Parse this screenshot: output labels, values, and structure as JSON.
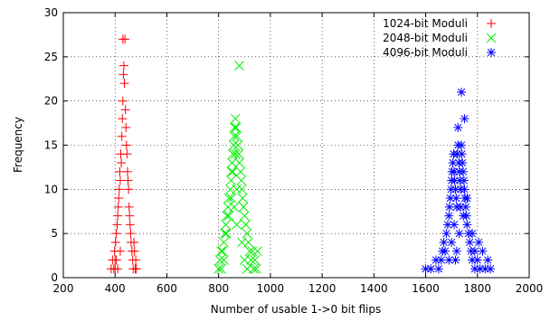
{
  "chart_data": {
    "type": "scatter",
    "xlabel": "Number of usable 1->0 bit flips",
    "ylabel": "Frequency",
    "xlim": [
      200,
      2000
    ],
    "ylim": [
      0,
      30
    ],
    "xticks": [
      200,
      400,
      600,
      800,
      1000,
      1200,
      1400,
      1600,
      1800,
      2000
    ],
    "yticks": [
      0,
      5,
      10,
      15,
      20,
      25,
      30
    ],
    "grid": true,
    "legend_position": "top-right",
    "series": [
      {
        "name": "1024-bit Moduli",
        "color": "#ff0000",
        "marker": "plus",
        "points": [
          [
            385,
            1
          ],
          [
            390,
            2
          ],
          [
            395,
            1
          ],
          [
            398,
            3
          ],
          [
            400,
            2
          ],
          [
            402,
            4
          ],
          [
            405,
            5
          ],
          [
            408,
            6
          ],
          [
            410,
            7
          ],
          [
            412,
            8
          ],
          [
            414,
            9
          ],
          [
            416,
            10
          ],
          [
            418,
            12
          ],
          [
            420,
            11
          ],
          [
            422,
            14
          ],
          [
            424,
            13
          ],
          [
            426,
            16
          ],
          [
            428,
            18
          ],
          [
            430,
            20
          ],
          [
            432,
            23
          ],
          [
            434,
            24
          ],
          [
            430,
            27
          ],
          [
            438,
            27
          ],
          [
            436,
            22
          ],
          [
            440,
            19
          ],
          [
            442,
            17
          ],
          [
            444,
            15
          ],
          [
            446,
            14
          ],
          [
            448,
            12
          ],
          [
            450,
            11
          ],
          [
            452,
            10
          ],
          [
            454,
            8
          ],
          [
            456,
            7
          ],
          [
            458,
            6
          ],
          [
            460,
            5
          ],
          [
            462,
            4
          ],
          [
            465,
            3
          ],
          [
            468,
            2
          ],
          [
            470,
            1
          ],
          [
            475,
            3
          ],
          [
            478,
            1
          ],
          [
            480,
            2
          ],
          [
            482,
            1
          ],
          [
            473,
            4
          ],
          [
            410,
            1
          ],
          [
            420,
            3
          ],
          [
            405,
            2
          ],
          [
            400,
            1
          ]
        ]
      },
      {
        "name": "2048-bit Moduli",
        "color": "#00ee00",
        "marker": "x",
        "points": [
          [
            800,
            1
          ],
          [
            805,
            2
          ],
          [
            810,
            1
          ],
          [
            815,
            3
          ],
          [
            820,
            4
          ],
          [
            825,
            5
          ],
          [
            828,
            6
          ],
          [
            832,
            7
          ],
          [
            836,
            8
          ],
          [
            840,
            9
          ],
          [
            845,
            10
          ],
          [
            848,
            11
          ],
          [
            850,
            12
          ],
          [
            852,
            13
          ],
          [
            855,
            14
          ],
          [
            858,
            15
          ],
          [
            860,
            16
          ],
          [
            862,
            17
          ],
          [
            865,
            18
          ],
          [
            868,
            17
          ],
          [
            870,
            16
          ],
          [
            875,
            15
          ],
          [
            878,
            14
          ],
          [
            880,
            13
          ],
          [
            885,
            12
          ],
          [
            888,
            11
          ],
          [
            890,
            10
          ],
          [
            893,
            9
          ],
          [
            896,
            8
          ],
          [
            900,
            7
          ],
          [
            905,
            6
          ],
          [
            910,
            5
          ],
          [
            915,
            4
          ],
          [
            920,
            3
          ],
          [
            925,
            2
          ],
          [
            930,
            3
          ],
          [
            935,
            1
          ],
          [
            940,
            2
          ],
          [
            945,
            1
          ],
          [
            950,
            3
          ],
          [
            880,
            24
          ],
          [
            850,
            9
          ],
          [
            860,
            8
          ],
          [
            870,
            6
          ],
          [
            840,
            7
          ],
          [
            830,
            5
          ],
          [
            820,
            2
          ],
          [
            810,
            3
          ],
          [
            900,
            2
          ],
          [
            890,
            4
          ],
          [
            910,
            1
          ],
          [
            870,
            10
          ],
          [
            855,
            12
          ],
          [
            865,
            14
          ]
        ]
      },
      {
        "name": "4096-bit Moduli",
        "color": "#0000ff",
        "marker": "asterisk",
        "points": [
          [
            1600,
            1
          ],
          [
            1620,
            1
          ],
          [
            1640,
            2
          ],
          [
            1650,
            1
          ],
          [
            1660,
            2
          ],
          [
            1665,
            3
          ],
          [
            1670,
            4
          ],
          [
            1675,
            3
          ],
          [
            1680,
            5
          ],
          [
            1685,
            6
          ],
          [
            1690,
            7
          ],
          [
            1692,
            8
          ],
          [
            1695,
            9
          ],
          [
            1698,
            10
          ],
          [
            1700,
            11
          ],
          [
            1702,
            12
          ],
          [
            1705,
            13
          ],
          [
            1708,
            14
          ],
          [
            1710,
            12
          ],
          [
            1712,
            11
          ],
          [
            1715,
            10
          ],
          [
            1718,
            9
          ],
          [
            1720,
            8
          ],
          [
            1722,
            14
          ],
          [
            1725,
            15
          ],
          [
            1728,
            13
          ],
          [
            1730,
            12
          ],
          [
            1732,
            11
          ],
          [
            1735,
            10
          ],
          [
            1738,
            15
          ],
          [
            1740,
            14
          ],
          [
            1742,
            13
          ],
          [
            1745,
            12
          ],
          [
            1748,
            11
          ],
          [
            1750,
            10
          ],
          [
            1752,
            9
          ],
          [
            1755,
            8
          ],
          [
            1758,
            7
          ],
          [
            1760,
            6
          ],
          [
            1765,
            5
          ],
          [
            1770,
            4
          ],
          [
            1775,
            3
          ],
          [
            1780,
            2
          ],
          [
            1790,
            1
          ],
          [
            1800,
            2
          ],
          [
            1810,
            1
          ],
          [
            1820,
            3
          ],
          [
            1830,
            1
          ],
          [
            1840,
            2
          ],
          [
            1850,
            1
          ],
          [
            1738,
            21
          ],
          [
            1750,
            18
          ],
          [
            1725,
            17
          ],
          [
            1700,
            4
          ],
          [
            1710,
            6
          ],
          [
            1720,
            3
          ],
          [
            1730,
            5
          ],
          [
            1690,
            2
          ],
          [
            1760,
            9
          ],
          [
            1745,
            7
          ],
          [
            1735,
            8
          ],
          [
            1715,
            2
          ],
          [
            1780,
            5
          ],
          [
            1790,
            3
          ],
          [
            1805,
            4
          ]
        ]
      }
    ]
  }
}
